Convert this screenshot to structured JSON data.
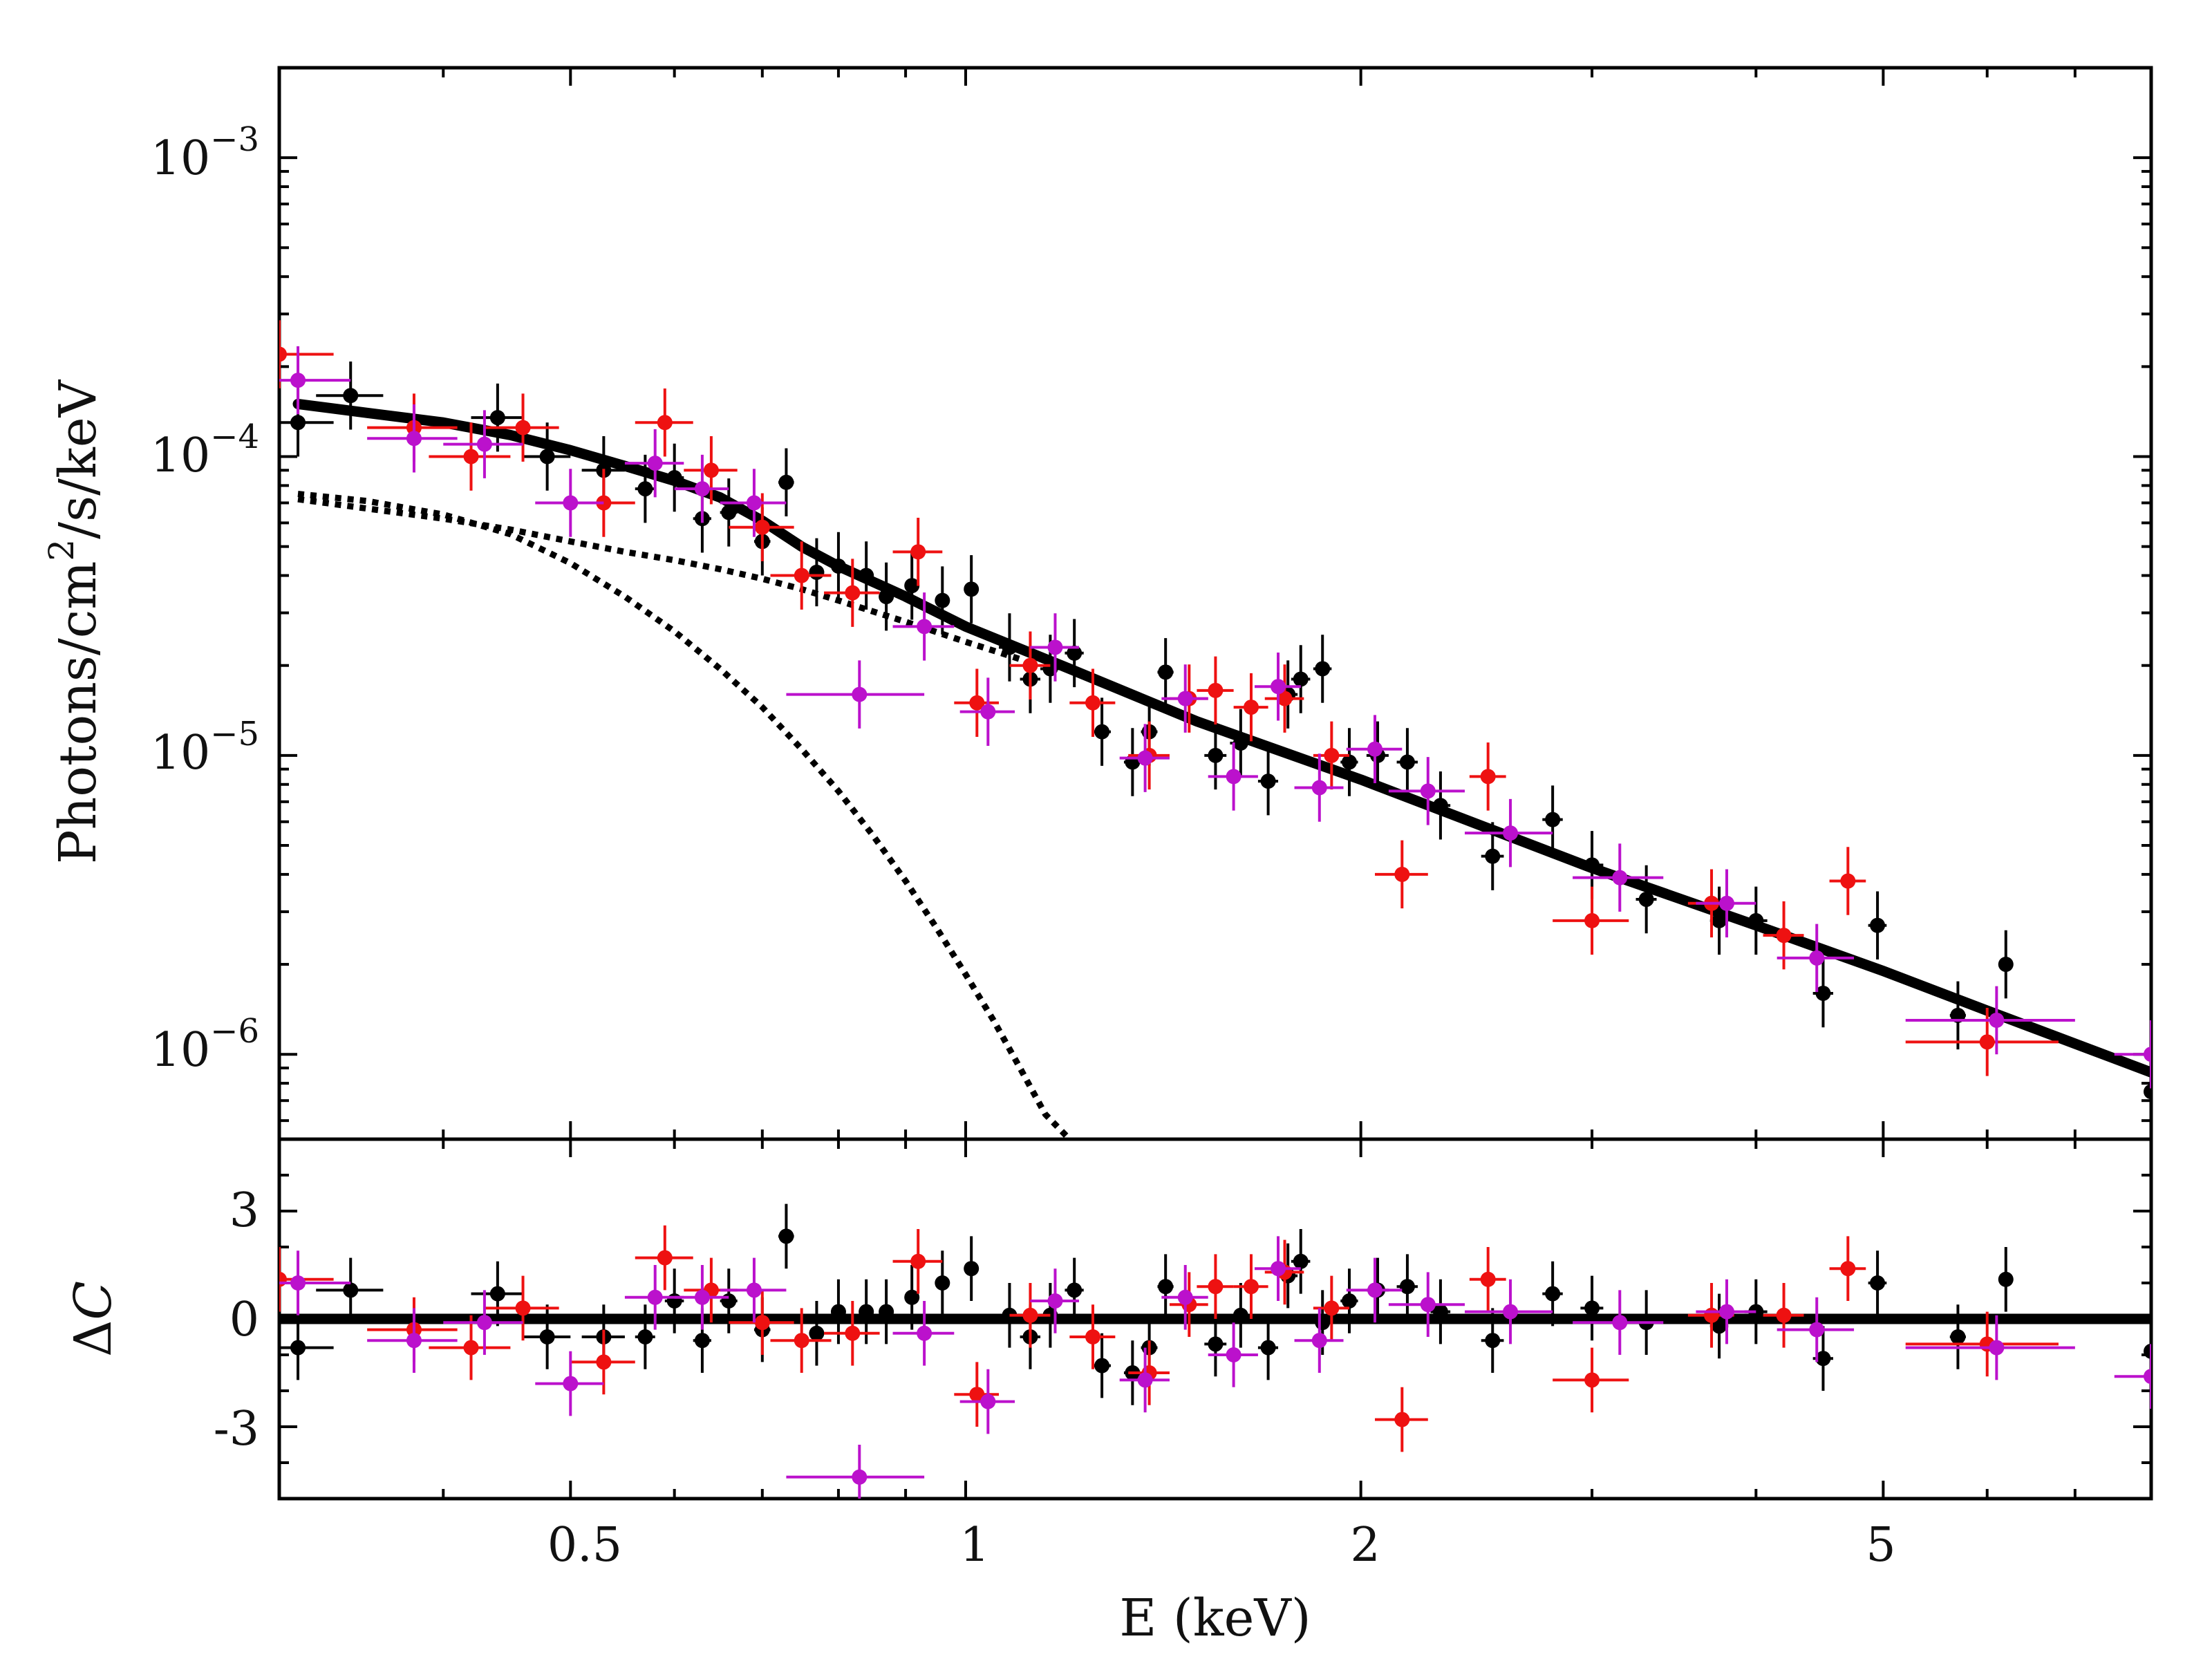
{
  "chart_data": {
    "type": "scatter",
    "xscale": "log",
    "xlim": [
      0.3,
      8.0
    ],
    "xlabel": "E (keV)",
    "x_ticks": [
      {
        "value": 0.5,
        "label": "0.5"
      },
      {
        "value": 1,
        "label": "1"
      },
      {
        "value": 2,
        "label": "2"
      },
      {
        "value": 5,
        "label": "5"
      }
    ],
    "panels": [
      {
        "id": "spectrum",
        "yscale": "log",
        "ylim": [
          5.2e-07,
          0.002
        ],
        "ylabel": "Photons/cm2/s/keV",
        "ylabel_parts": {
          "pre": "Photons/cm",
          "sup": "2",
          "post": "/s/keV"
        },
        "y_ticks": [
          {
            "value": 0.001,
            "base": "10",
            "exp": "−3"
          },
          {
            "value": 0.0001,
            "base": "10",
            "exp": "−4"
          },
          {
            "value": 1e-05,
            "base": "10",
            "exp": "−5"
          },
          {
            "value": 1e-06,
            "base": "10",
            "exp": "−6"
          }
        ]
      },
      {
        "id": "residuals",
        "yscale": "linear",
        "ylim": [
          -5,
          5
        ],
        "ylabel": "ΔC",
        "ylabel_parts": {
          "pre": "Δ",
          "italic": "C"
        },
        "y_ticks": [
          {
            "value": 3,
            "label": "3"
          },
          {
            "value": 0,
            "label": "0"
          },
          {
            "value": -3,
            "label": "-3"
          }
        ]
      }
    ],
    "models": [
      {
        "name": "total model",
        "style": "solid",
        "color": "#000000",
        "points": [
          [
            0.31,
            0.00015
          ],
          [
            0.35,
            0.00014
          ],
          [
            0.4,
            0.00013
          ],
          [
            0.45,
            0.000118
          ],
          [
            0.5,
            0.000105
          ],
          [
            0.55,
            9.3e-05
          ],
          [
            0.6,
            8.3e-05
          ],
          [
            0.65,
            7.3e-05
          ],
          [
            0.7,
            6.1e-05
          ],
          [
            0.75,
            5e-05
          ],
          [
            0.8,
            4.3e-05
          ],
          [
            0.9,
            3.4e-05
          ],
          [
            1.0,
            2.7e-05
          ],
          [
            1.2,
            1.95e-05
          ],
          [
            1.5,
            1.3e-05
          ],
          [
            2.0,
            8.3e-06
          ],
          [
            3.0,
            4.2e-06
          ],
          [
            4.0,
            2.7e-06
          ],
          [
            5.0,
            1.9e-06
          ],
          [
            6.0,
            1.4e-06
          ],
          [
            8.0,
            8.7e-07
          ]
        ]
      },
      {
        "name": "soft component",
        "style": "dotted",
        "color": "#000000",
        "points": [
          [
            0.31,
            7.5e-05
          ],
          [
            0.35,
            7.1e-05
          ],
          [
            0.4,
            6.4e-05
          ],
          [
            0.45,
            5.5e-05
          ],
          [
            0.5,
            4.4e-05
          ],
          [
            0.55,
            3.4e-05
          ],
          [
            0.6,
            2.6e-05
          ],
          [
            0.65,
            1.95e-05
          ],
          [
            0.7,
            1.45e-05
          ],
          [
            0.75,
            1.05e-05
          ],
          [
            0.8,
            7.6e-06
          ],
          [
            0.85,
            5.4e-06
          ],
          [
            0.9,
            3.8e-06
          ],
          [
            0.95,
            2.65e-06
          ],
          [
            1.0,
            1.85e-06
          ],
          [
            1.05,
            1.3e-06
          ],
          [
            1.1,
            9e-07
          ],
          [
            1.15,
            6.3e-07
          ],
          [
            1.2,
            5.2e-07
          ]
        ]
      },
      {
        "name": "hard component",
        "style": "dotted",
        "color": "#000000",
        "points": [
          [
            0.31,
            7.2e-05
          ],
          [
            0.35,
            6.7e-05
          ],
          [
            0.4,
            6.2e-05
          ],
          [
            0.45,
            5.7e-05
          ],
          [
            0.5,
            5.2e-05
          ],
          [
            0.55,
            4.8e-05
          ],
          [
            0.6,
            4.5e-05
          ],
          [
            0.65,
            4.2e-05
          ],
          [
            0.7,
            3.9e-05
          ],
          [
            0.75,
            3.6e-05
          ],
          [
            0.8,
            3.3e-05
          ],
          [
            0.9,
            2.8e-05
          ],
          [
            1.0,
            2.4e-05
          ],
          [
            1.1,
            2.1e-05
          ]
        ]
      }
    ],
    "residual_line": {
      "value": 0,
      "color": "#000000"
    },
    "series": [
      {
        "name": "black",
        "color": "#000000",
        "points": [
          [
            0.31,
            0.00013,
            0.02,
            -0.8
          ],
          [
            0.34,
            0.00016,
            0.02,
            0.8
          ],
          [
            0.44,
            0.000135,
            0.02,
            0.7
          ],
          [
            0.48,
            0.0001,
            0.02,
            -0.5
          ],
          [
            0.53,
            9e-05,
            0.02,
            -0.5
          ],
          [
            0.57,
            7.8e-05,
            0.01,
            -0.5
          ],
          [
            0.6,
            8.5e-05,
            0.01,
            0.5
          ],
          [
            0.63,
            6.2e-05,
            0.01,
            -0.6
          ],
          [
            0.66,
            6.5e-05,
            0.01,
            0.5
          ],
          [
            0.7,
            5.2e-05,
            0.01,
            -0.3
          ],
          [
            0.73,
            8.2e-05,
            0.01,
            2.3
          ],
          [
            0.77,
            4.1e-05,
            0.01,
            -0.4
          ],
          [
            0.8,
            4.3e-05,
            0.01,
            0.2
          ],
          [
            0.84,
            4e-05,
            0.01,
            0.2
          ],
          [
            0.87,
            3.4e-05,
            0.01,
            0.2
          ],
          [
            0.91,
            3.7e-05,
            0.01,
            0.6
          ],
          [
            0.96,
            3.3e-05,
            0.01,
            1.0
          ],
          [
            1.01,
            3.6e-05,
            0.01,
            1.4
          ],
          [
            1.08,
            2.3e-05,
            0.02,
            0.1
          ],
          [
            1.12,
            1.8e-05,
            0.02,
            -0.5
          ],
          [
            1.16,
            1.95e-05,
            0.02,
            0.1
          ],
          [
            1.21,
            2.2e-05,
            0.02,
            0.8
          ],
          [
            1.27,
            1.2e-05,
            0.02,
            -1.3
          ],
          [
            1.34,
            9.5e-06,
            0.02,
            -1.5
          ],
          [
            1.38,
            1.2e-05,
            0.02,
            -0.8
          ],
          [
            1.42,
            1.9e-05,
            0.02,
            0.9
          ],
          [
            1.55,
            1e-05,
            0.03,
            -0.7
          ],
          [
            1.62,
            1.1e-05,
            0.03,
            0.1
          ],
          [
            1.7,
            8.2e-06,
            0.03,
            -0.8
          ],
          [
            1.76,
            1.6e-05,
            0.03,
            1.2
          ],
          [
            1.8,
            1.8e-05,
            0.03,
            1.6
          ],
          [
            1.87,
            1.95e-05,
            0.03,
            -0.1
          ],
          [
            1.96,
            9.5e-06,
            0.03,
            0.5
          ],
          [
            2.06,
            1e-05,
            0.04,
            0.8
          ],
          [
            2.17,
            9.5e-06,
            0.04,
            0.9
          ],
          [
            2.3,
            6.8e-06,
            0.04,
            0.2
          ],
          [
            2.52,
            4.6e-06,
            0.05,
            -0.6
          ],
          [
            2.8,
            6.1e-06,
            0.05,
            0.7
          ],
          [
            3.0,
            4.3e-06,
            0.06,
            0.3
          ],
          [
            3.3,
            3.3e-06,
            0.06,
            -0.1
          ],
          [
            3.75,
            2.8e-06,
            0.06,
            -0.2
          ],
          [
            4.0,
            2.8e-06,
            0.08,
            0.2
          ],
          [
            4.5,
            1.6e-06,
            0.08,
            -1.1
          ],
          [
            4.95,
            2.7e-06,
            0.08,
            1.0
          ],
          [
            5.7,
            1.35e-06,
            0.08,
            -0.5
          ],
          [
            6.2,
            2e-06,
            0.08,
            1.1
          ],
          [
            8.0,
            7.5e-07,
            0.1,
            -0.9
          ]
        ]
      },
      {
        "name": "red",
        "color": "#ee1111",
        "points": [
          [
            0.3,
            0.00022,
            0.03,
            1.1
          ],
          [
            0.38,
            0.000125,
            0.03,
            -0.3
          ],
          [
            0.42,
            0.0001,
            0.03,
            -0.8
          ],
          [
            0.46,
            0.000125,
            0.03,
            0.3
          ],
          [
            0.53,
            7e-05,
            0.03,
            -1.2
          ],
          [
            0.59,
            0.00013,
            0.03,
            1.7
          ],
          [
            0.64,
            9e-05,
            0.03,
            0.8
          ],
          [
            0.7,
            5.8e-05,
            0.04,
            -0.1
          ],
          [
            0.75,
            4e-05,
            0.04,
            -0.6
          ],
          [
            0.82,
            3.5e-05,
            0.04,
            -0.4
          ],
          [
            0.92,
            4.8e-05,
            0.04,
            1.6
          ],
          [
            1.02,
            1.5e-05,
            0.04,
            -2.1
          ],
          [
            1.12,
            2e-05,
            0.04,
            0.1
          ],
          [
            1.25,
            1.5e-05,
            0.05,
            -0.5
          ],
          [
            1.38,
            1e-05,
            0.05,
            -1.5
          ],
          [
            1.48,
            1.55e-05,
            0.05,
            0.4
          ],
          [
            1.55,
            1.65e-05,
            0.05,
            0.9
          ],
          [
            1.65,
            1.45e-05,
            0.05,
            0.9
          ],
          [
            1.75,
            1.55e-05,
            0.06,
            1.3
          ],
          [
            1.9,
            1e-05,
            0.06,
            0.3
          ],
          [
            2.15,
            4e-06,
            0.1,
            -2.8
          ],
          [
            2.5,
            8.5e-06,
            0.08,
            1.1
          ],
          [
            3.0,
            2.8e-06,
            0.2,
            -1.7
          ],
          [
            3.7,
            3.2e-06,
            0.15,
            0.1
          ],
          [
            4.2,
            2.5e-06,
            0.15,
            0.1
          ],
          [
            4.7,
            3.8e-06,
            0.15,
            1.4
          ],
          [
            6.0,
            1.1e-06,
            0.8,
            -0.7
          ]
        ]
      },
      {
        "name": "magenta",
        "color": "#bb11cc",
        "points": [
          [
            0.31,
            0.00018,
            0.03,
            1.0
          ],
          [
            0.38,
            0.000115,
            0.03,
            -0.6
          ],
          [
            0.43,
            0.00011,
            0.03,
            -0.1
          ],
          [
            0.5,
            7e-05,
            0.03,
            -1.8
          ],
          [
            0.58,
            9.5e-05,
            0.03,
            0.6
          ],
          [
            0.63,
            7.8e-05,
            0.03,
            0.6
          ],
          [
            0.69,
            7e-05,
            0.04,
            0.8
          ],
          [
            0.83,
            1.6e-05,
            0.1,
            -4.4
          ],
          [
            0.93,
            2.7e-05,
            0.05,
            -0.4
          ],
          [
            1.04,
            1.4e-05,
            0.05,
            -2.3
          ],
          [
            1.17,
            2.3e-05,
            0.05,
            0.5
          ],
          [
            1.37,
            9.8e-06,
            0.06,
            -1.7
          ],
          [
            1.47,
            1.55e-05,
            0.06,
            0.6
          ],
          [
            1.6,
            8.5e-06,
            0.07,
            -1.0
          ],
          [
            1.73,
            1.7e-05,
            0.07,
            1.4
          ],
          [
            1.86,
            7.8e-06,
            0.08,
            -0.6
          ],
          [
            2.05,
            1.05e-05,
            0.1,
            0.8
          ],
          [
            2.25,
            7.6e-06,
            0.15,
            0.4
          ],
          [
            2.6,
            5.5e-06,
            0.2,
            0.2
          ],
          [
            3.15,
            3.9e-06,
            0.25,
            -0.1
          ],
          [
            3.8,
            3.2e-06,
            0.2,
            0.2
          ],
          [
            4.45,
            2.1e-06,
            0.3,
            -0.3
          ],
          [
            6.1,
            1.3e-06,
            0.9,
            -0.8
          ],
          [
            8.0,
            1e-06,
            0.5,
            -1.6
          ]
        ]
      }
    ]
  }
}
